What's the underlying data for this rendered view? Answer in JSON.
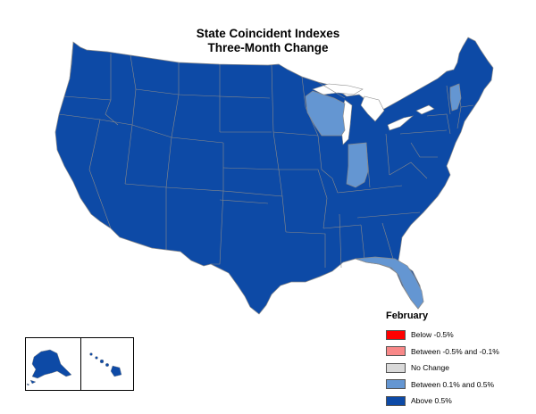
{
  "title": {
    "line1": "State Coincident Indexes",
    "line2": "Three-Month Change"
  },
  "colors": {
    "below_neg_0_5": "#ff0000",
    "between_neg_0_5_and_neg_0_1": "#f88888",
    "no_change": "#d9d9d9",
    "between_0_1_and_0_5": "#6496d2",
    "above_0_5": "#0d4aa6",
    "border": "#8a8a8a"
  },
  "legend": {
    "title": "February",
    "items": [
      {
        "label": "Below -0.5%",
        "color": "#ff0000"
      },
      {
        "label": "Between -0.5% and -0.1%",
        "color": "#f88888"
      },
      {
        "label": "No Change",
        "color": "#d9d9d9"
      },
      {
        "label": "Between 0.1% and 0.5%",
        "color": "#6496d2"
      },
      {
        "label": "Above 0.5%",
        "color": "#0d4aa6"
      }
    ]
  },
  "highlighted_states": [
    "Wisconsin",
    "Indiana",
    "Vermont",
    "Florida"
  ]
}
